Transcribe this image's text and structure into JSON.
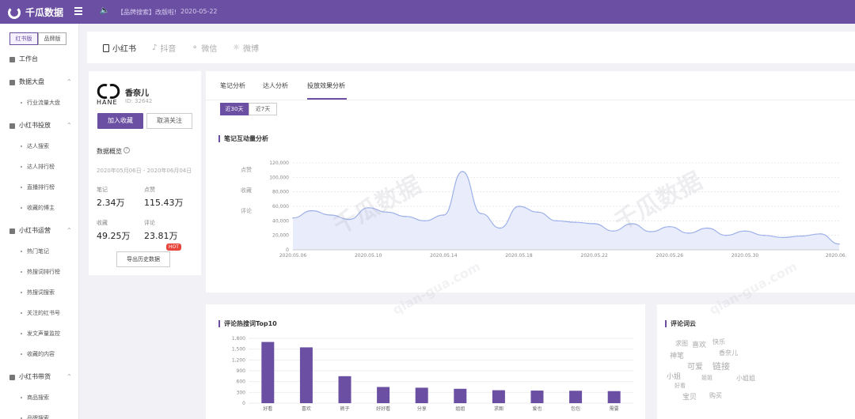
{
  "topbar": {
    "brand": "千瓜数据",
    "announcement": "【品牌搜索】改版啦!",
    "date": "2020-05-22"
  },
  "sidebar": {
    "versions": [
      "红书版",
      "品牌版"
    ],
    "items": [
      {
        "label": "工作台",
        "type": "top"
      },
      {
        "label": "数据大盘",
        "type": "group"
      },
      {
        "label": "行业流量大盘",
        "type": "sub"
      },
      {
        "label": "小红书投放",
        "type": "group"
      },
      {
        "label": "达人搜索",
        "type": "sub"
      },
      {
        "label": "达人排行榜",
        "type": "sub"
      },
      {
        "label": "直播排行榜",
        "type": "sub"
      },
      {
        "label": "收藏的博主",
        "type": "sub"
      },
      {
        "label": "小红书运营",
        "type": "group"
      },
      {
        "label": "热门笔记",
        "type": "sub"
      },
      {
        "label": "热搜词排行榜",
        "type": "sub"
      },
      {
        "label": "热搜词搜索",
        "type": "sub"
      },
      {
        "label": "关注的红书号",
        "type": "sub"
      },
      {
        "label": "发文声量监控",
        "type": "sub"
      },
      {
        "label": "收藏的内容",
        "type": "sub"
      },
      {
        "label": "小红书带货",
        "type": "group"
      },
      {
        "label": "商品搜索",
        "type": "sub"
      },
      {
        "label": "品牌搜索",
        "type": "sub"
      }
    ]
  },
  "platform_tabs": [
    "小红书",
    "抖音",
    "微信",
    "微博"
  ],
  "brand": {
    "logo_text": "HANE",
    "name": "香奈儿",
    "id": "ID: 32642",
    "fav_button": "加入收藏",
    "unfollow_button": "取消关注",
    "overview_title": "数据概览",
    "help": "?",
    "range": "2020年05月06日 - 2020年06月04日",
    "stats": [
      {
        "label": "笔记",
        "value": "2.34万"
      },
      {
        "label": "点赞",
        "value": "115.43万"
      },
      {
        "label": "收藏",
        "value": "49.25万"
      },
      {
        "label": "评论",
        "value": "23.81万"
      }
    ],
    "export_button": "导出历史数据",
    "hot_badge": "HOT"
  },
  "analysis_tabs": [
    "笔记分析",
    "达人分析",
    "投放效果分析"
  ],
  "range_buttons": [
    "近30天",
    "近7天"
  ],
  "interaction_section": {
    "title": "笔记互动量分析",
    "legend": [
      "点赞",
      "收藏",
      "评论"
    ]
  },
  "chart_data": [
    {
      "type": "area",
      "x": [
        "2020.05.06",
        "2020.05.07",
        "2020.05.08",
        "2020.05.09",
        "2020.05.10",
        "2020.05.11",
        "2020.05.12",
        "2020.05.13",
        "2020.05.14",
        "2020.05.15",
        "2020.05.16",
        "2020.05.17",
        "2020.05.18",
        "2020.05.19",
        "2020.05.20",
        "2020.05.21",
        "2020.05.22",
        "2020.05.23",
        "2020.05.24",
        "2020.05.25",
        "2020.05.26",
        "2020.05.27",
        "2020.05.28",
        "2020.05.29",
        "2020.05.30",
        "2020.05.31",
        "2020.06.01",
        "2020.06.02",
        "2020.06.03",
        "2020.06.04"
      ],
      "series": [
        {
          "values": [
            44000,
            54000,
            48000,
            42000,
            58000,
            52000,
            46000,
            40000,
            48000,
            108000,
            50000,
            30000,
            60000,
            52000,
            40000,
            38000,
            36000,
            26000,
            36000,
            25000,
            32000,
            23000,
            30000,
            20000,
            26000,
            20000,
            17000,
            19000,
            22000,
            8000
          ]
        }
      ],
      "xticks": [
        "2020.05.06",
        "2020.05.10",
        "2020.05.14",
        "2020.05.18",
        "2020.05.22",
        "2020.05.26",
        "2020.05.30",
        "2020.06.04"
      ],
      "yticks": [
        "0",
        "20,000",
        "40,000",
        "60,000",
        "80,000",
        "100,000",
        "120,000"
      ],
      "ylim": [
        0,
        120000
      ]
    },
    {
      "type": "bar",
      "title": "评论热搜词Top10",
      "categories": [
        "好看",
        "喜欢",
        "裤子",
        "好好看",
        "分享",
        "姐姐",
        "求图",
        "爱也",
        "包包",
        "需要"
      ],
      "values": [
        1700,
        1550,
        750,
        450,
        430,
        400,
        360,
        350,
        345,
        335
      ],
      "yticks": [
        "0",
        "300",
        "600",
        "900",
        "1,200",
        "1,500",
        "1,800"
      ],
      "ylim": [
        0,
        1800
      ]
    }
  ],
  "cloud": {
    "title": "评论词云",
    "words": [
      "求图",
      "喜欢",
      "快乐",
      "神笔",
      "香奈儿",
      "可爱",
      "链接",
      "小姐",
      "小姐姐",
      "好看",
      "姐姐",
      "宝贝",
      "购买"
    ]
  },
  "watermarks": [
    "千瓜数据",
    "千瓜数据",
    "qian-gua.com",
    "qian-gua.com"
  ]
}
